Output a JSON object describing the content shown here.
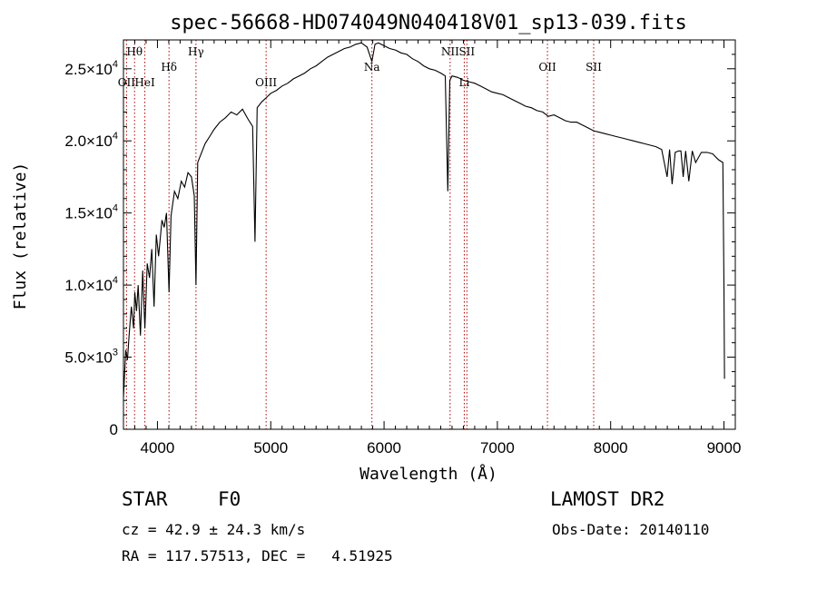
{
  "chart_data": {
    "type": "line",
    "title": "spec-56668-HD074049N040418V01_sp13-039.fits",
    "xlabel": "Wavelength (Å)",
    "ylabel": "Flux (relative)",
    "xlim": [
      3700,
      9100
    ],
    "ylim": [
      0,
      27000
    ],
    "xticks": [
      4000,
      5000,
      6000,
      7000,
      8000,
      9000
    ],
    "yticks": [
      {
        "value": 0,
        "mant": "0",
        "exp": ""
      },
      {
        "value": 5000,
        "mant": "5.0×10",
        "exp": "3"
      },
      {
        "value": 10000,
        "mant": "1.0×10",
        "exp": "4"
      },
      {
        "value": 15000,
        "mant": "1.5×10",
        "exp": "4"
      },
      {
        "value": 20000,
        "mant": "2.0×10",
        "exp": "4"
      },
      {
        "value": 25000,
        "mant": "2.5×10",
        "exp": "4"
      }
    ],
    "grid": false,
    "series": [
      {
        "color": "#000000",
        "x": [
          3700,
          3720,
          3735,
          3750,
          3770,
          3790,
          3800,
          3815,
          3830,
          3850,
          3870,
          3889,
          3910,
          3930,
          3950,
          3970,
          3990,
          4010,
          4040,
          4060,
          4080,
          4102,
          4120,
          4150,
          4180,
          4210,
          4240,
          4270,
          4300,
          4325,
          4340,
          4355,
          4380,
          4420,
          4460,
          4500,
          4550,
          4600,
          4650,
          4700,
          4750,
          4800,
          4840,
          4861,
          4880,
          4920,
          4960,
          5000,
          5050,
          5100,
          5150,
          5200,
          5250,
          5300,
          5350,
          5400,
          5450,
          5500,
          5550,
          5600,
          5650,
          5700,
          5750,
          5800,
          5850,
          5893,
          5920,
          5950,
          6000,
          6050,
          6100,
          6150,
          6200,
          6250,
          6300,
          6350,
          6400,
          6450,
          6500,
          6540,
          6563,
          6580,
          6600,
          6650,
          6700,
          6750,
          6800,
          6850,
          6900,
          6950,
          7000,
          7050,
          7100,
          7150,
          7200,
          7250,
          7300,
          7350,
          7400,
          7450,
          7500,
          7550,
          7600,
          7650,
          7700,
          7750,
          7800,
          7850,
          7900,
          7950,
          8000,
          8050,
          8100,
          8150,
          8200,
          8250,
          8300,
          8350,
          8400,
          8450,
          8498,
          8520,
          8542,
          8570,
          8600,
          8620,
          8640,
          8662,
          8690,
          8720,
          8750,
          8800,
          8850,
          8900,
          8950,
          8990,
          9000,
          9005
        ],
        "y": [
          2200,
          5500,
          4800,
          6500,
          8500,
          7000,
          9500,
          8200,
          10000,
          6500,
          11000,
          7000,
          11500,
          10500,
          12500,
          8500,
          13500,
          12000,
          14500,
          14000,
          15000,
          9500,
          14800,
          16500,
          16000,
          17200,
          16800,
          17800,
          17500,
          16200,
          10000,
          18500,
          19000,
          19800,
          20300,
          20800,
          21300,
          21600,
          22000,
          21800,
          22200,
          21500,
          21000,
          13000,
          22300,
          22700,
          23000,
          23300,
          23500,
          23800,
          24000,
          24300,
          24500,
          24700,
          25000,
          25200,
          25500,
          25800,
          26000,
          26200,
          26400,
          26500,
          26700,
          26800,
          26500,
          25500,
          26700,
          26800,
          26600,
          26400,
          26300,
          26100,
          26000,
          25700,
          25500,
          25200,
          25000,
          24900,
          24700,
          24500,
          16500,
          24200,
          24500,
          24400,
          24200,
          24100,
          24000,
          23800,
          23600,
          23400,
          23300,
          23200,
          23000,
          22800,
          22600,
          22400,
          22300,
          22100,
          22000,
          21700,
          21800,
          21600,
          21400,
          21300,
          21300,
          21100,
          20900,
          20700,
          20600,
          20500,
          20400,
          20300,
          20200,
          20100,
          20000,
          19900,
          19800,
          19700,
          19600,
          19400,
          17500,
          19400,
          17000,
          19200,
          19300,
          19300,
          17500,
          19300,
          17200,
          19300,
          18500,
          19200,
          19200,
          19100,
          18700,
          18500,
          10000,
          3500
        ]
      }
    ],
    "lines": [
      {
        "x": 3727,
        "label": "OII",
        "row": 2
      },
      {
        "x": 3798,
        "label": "Hθ",
        "row": 0
      },
      {
        "x": 3889,
        "label": "HeI",
        "row": 2
      },
      {
        "x": 4102,
        "label": "Hδ",
        "row": 1
      },
      {
        "x": 4340,
        "label": "Hγ",
        "row": 0
      },
      {
        "x": 4959,
        "label": "OIII",
        "row": 2
      },
      {
        "x": 5893,
        "label": "Na",
        "row": 1
      },
      {
        "x": 6583,
        "label": "NII",
        "row": 0
      },
      {
        "x": 6708,
        "label": "Li",
        "row": 2
      },
      {
        "x": 6731,
        "label": "SII",
        "row": 0
      },
      {
        "x": 7442,
        "label": "OII",
        "row": 1
      },
      {
        "x": 7850,
        "label": "SII",
        "row": 1
      }
    ],
    "line_color": "#b00000"
  },
  "info": {
    "object_type": "STAR",
    "subclass": "F0",
    "survey": "LAMOST DR2",
    "cz_text": "cz = 42.9 ± 24.3 km/s",
    "obs_date": "Obs-Date: 20140110",
    "coords": "RA = 117.57513, DEC =   4.51925"
  }
}
